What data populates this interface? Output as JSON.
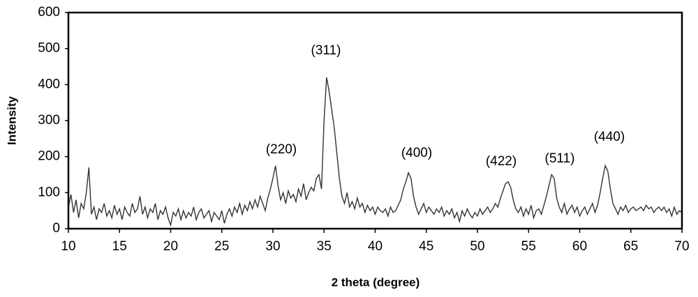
{
  "chart_data": {
    "type": "line",
    "x_label": "2 theta (degree)",
    "y_label": "Intensity",
    "annotations": [
      "(220)",
      "(311)",
      "(400)",
      "(422)",
      "(511)",
      "(440)"
    ],
    "color": "#333333",
    "x": [
      10,
      10.25,
      10.5,
      10.75,
      11,
      11.25,
      11.5,
      11.75,
      12,
      12.25,
      12.5,
      12.75,
      13,
      13.25,
      13.5,
      13.75,
      14,
      14.25,
      14.5,
      14.75,
      15,
      15.25,
      15.5,
      15.75,
      16,
      16.25,
      16.5,
      16.75,
      17,
      17.25,
      17.5,
      17.75,
      18,
      18.25,
      18.5,
      18.75,
      19,
      19.25,
      19.5,
      19.75,
      20,
      20.25,
      20.5,
      20.75,
      21,
      21.25,
      21.5,
      21.75,
      22,
      22.25,
      22.5,
      22.75,
      23,
      23.25,
      23.5,
      23.75,
      24,
      24.25,
      24.5,
      24.75,
      25,
      25.25,
      25.5,
      25.75,
      26,
      26.25,
      26.5,
      26.75,
      27,
      27.25,
      27.5,
      27.75,
      28,
      28.25,
      28.5,
      28.75,
      29,
      29.25,
      29.5,
      29.75,
      30,
      30.25,
      30.5,
      30.75,
      31,
      31.25,
      31.5,
      31.75,
      32,
      32.25,
      32.5,
      32.75,
      33,
      33.25,
      33.5,
      33.75,
      34,
      34.25,
      34.5,
      34.75,
      35,
      35.25,
      35.5,
      35.75,
      36,
      36.25,
      36.5,
      36.75,
      37,
      37.25,
      37.5,
      37.75,
      38,
      38.25,
      38.5,
      38.75,
      39,
      39.25,
      39.5,
      39.75,
      40,
      40.25,
      40.5,
      40.75,
      41,
      41.25,
      41.5,
      41.75,
      42,
      42.25,
      42.5,
      42.75,
      43,
      43.25,
      43.5,
      43.75,
      44,
      44.25,
      44.5,
      44.75,
      45,
      45.25,
      45.5,
      45.75,
      46,
      46.25,
      46.5,
      46.75,
      47,
      47.25,
      47.5,
      47.75,
      48,
      48.25,
      48.5,
      48.75,
      49,
      49.25,
      49.5,
      49.75,
      50,
      50.25,
      50.5,
      50.75,
      51,
      51.25,
      51.5,
      51.75,
      52,
      52.25,
      52.5,
      52.75,
      53,
      53.25,
      53.5,
      53.75,
      54,
      54.25,
      54.5,
      54.75,
      55,
      55.25,
      55.5,
      55.75,
      56,
      56.25,
      56.5,
      56.75,
      57,
      57.25,
      57.5,
      57.75,
      58,
      58.25,
      58.5,
      58.75,
      59,
      59.25,
      59.5,
      59.75,
      60,
      60.25,
      60.5,
      60.75,
      61,
      61.25,
      61.5,
      61.75,
      62,
      62.25,
      62.5,
      62.75,
      63,
      63.25,
      63.5,
      63.75,
      64,
      64.25,
      64.5,
      64.75,
      65,
      65.25,
      65.5,
      65.75,
      66,
      66.25,
      66.5,
      66.75,
      67,
      67.25,
      67.5,
      67.75,
      68,
      68.25,
      68.5,
      68.75,
      69,
      69.25,
      69.5,
      69.75,
      70
    ],
    "values": [
      60,
      95,
      45,
      80,
      30,
      70,
      55,
      100,
      170,
      40,
      60,
      25,
      55,
      45,
      70,
      35,
      50,
      30,
      65,
      40,
      55,
      25,
      60,
      45,
      35,
      70,
      45,
      55,
      90,
      40,
      60,
      30,
      55,
      45,
      70,
      25,
      50,
      40,
      60,
      30,
      10,
      45,
      35,
      55,
      25,
      50,
      30,
      45,
      35,
      60,
      25,
      45,
      55,
      30,
      40,
      50,
      20,
      45,
      35,
      25,
      50,
      15,
      40,
      55,
      35,
      60,
      45,
      70,
      40,
      65,
      50,
      75,
      55,
      80,
      60,
      90,
      70,
      50,
      85,
      110,
      140,
      175,
      120,
      80,
      100,
      70,
      105,
      85,
      95,
      75,
      110,
      90,
      125,
      80,
      100,
      115,
      105,
      140,
      150,
      110,
      300,
      420,
      380,
      330,
      280,
      210,
      140,
      90,
      70,
      100,
      60,
      75,
      55,
      85,
      60,
      70,
      45,
      65,
      50,
      60,
      40,
      60,
      50,
      45,
      55,
      35,
      60,
      45,
      50,
      65,
      80,
      110,
      130,
      155,
      140,
      90,
      60,
      40,
      55,
      70,
      45,
      60,
      50,
      40,
      55,
      45,
      60,
      35,
      50,
      40,
      55,
      30,
      45,
      20,
      50,
      35,
      55,
      40,
      30,
      45,
      35,
      55,
      40,
      50,
      60,
      45,
      55,
      70,
      60,
      85,
      105,
      125,
      130,
      115,
      80,
      55,
      45,
      60,
      35,
      55,
      40,
      65,
      30,
      50,
      55,
      40,
      65,
      90,
      120,
      150,
      140,
      85,
      60,
      45,
      70,
      40,
      55,
      65,
      45,
      60,
      35,
      50,
      60,
      40,
      55,
      70,
      45,
      65,
      100,
      140,
      175,
      160,
      110,
      70,
      55,
      40,
      60,
      50,
      65,
      45,
      55,
      60,
      50,
      55,
      60,
      50,
      65,
      55,
      60,
      45,
      55,
      60,
      50,
      60,
      45,
      55,
      35,
      60,
      40,
      50,
      45
    ],
    "xlim": [
      10,
      70
    ],
    "xticks": [
      10,
      15,
      20,
      25,
      30,
      35,
      40,
      45,
      50,
      55,
      60,
      65,
      70
    ],
    "ylim": [
      0,
      600
    ],
    "yticks": [
      0,
      100,
      200,
      300,
      400,
      500,
      600
    ],
    "grid": false
  }
}
